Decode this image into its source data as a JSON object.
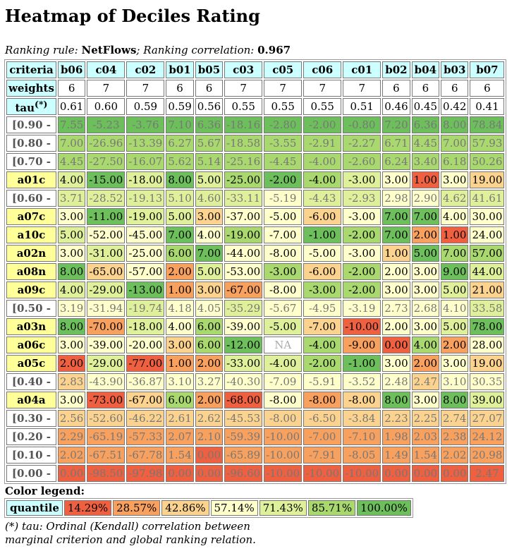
{
  "title": "Heatmap of Deciles Rating",
  "ranking": {
    "rule_label": "Ranking rule: ",
    "rule_value": "NetFlows",
    "corr_label": "; Ranking correlation: ",
    "corr_value": "0.967"
  },
  "table": {
    "corner_label": "criteria",
    "weights_label": "weights",
    "tau_label": "tau",
    "tau_sup": "(*)",
    "columns": [
      "b06",
      "c04",
      "c02",
      "b01",
      "b05",
      "c03",
      "c05",
      "c06",
      "c01",
      "b02",
      "b04",
      "b03",
      "b07"
    ],
    "weights": [
      "6",
      "7",
      "7",
      "6",
      "6",
      "7",
      "7",
      "7",
      "7",
      "6",
      "6",
      "6",
      "6"
    ],
    "tau": [
      "0.61",
      "0.60",
      "0.59",
      "0.59",
      "0.56",
      "0.55",
      "0.55",
      "0.55",
      "0.51",
      "0.46",
      "0.45",
      "0.42",
      "0.41"
    ],
    "rows": [
      {
        "label": "[0.90 -",
        "kind": "decile",
        "values": [
          "7.55",
          "-5.23",
          "-3.76",
          "7.10",
          "6.36",
          "-18.16",
          "-2.80",
          "-2.00",
          "-0.80",
          "7.20",
          "6.36",
          "8.00",
          "78.84"
        ],
        "levels": [
          7,
          7,
          7,
          7,
          7,
          7,
          7,
          7,
          7,
          7,
          7,
          7,
          7
        ]
      },
      {
        "label": "[0.80 -",
        "kind": "decile",
        "values": [
          "7.00",
          "-26.96",
          "-13.39",
          "6.27",
          "5.67",
          "-18.58",
          "-3.55",
          "-2.91",
          "-2.27",
          "6.71",
          "4.45",
          "7.00",
          "57.93"
        ],
        "levels": [
          6,
          6,
          6,
          6,
          6,
          6,
          6,
          6,
          6,
          6,
          6,
          6,
          6
        ]
      },
      {
        "label": "[0.70 -",
        "kind": "decile",
        "values": [
          "4.45",
          "-27.50",
          "-16.07",
          "5.62",
          "5.14",
          "-25.16",
          "-4.45",
          "-4.00",
          "-2.60",
          "6.24",
          "3.40",
          "6.18",
          "50.26"
        ],
        "levels": [
          6,
          6,
          6,
          6,
          6,
          6,
          6,
          6,
          6,
          6,
          6,
          6,
          6
        ]
      },
      {
        "label": "a01c",
        "kind": "action",
        "values": [
          "4.00",
          "-15.00",
          "-18.00",
          "8.00",
          "5.00",
          "-25.00",
          "-2.00",
          "-4.00",
          "-3.00",
          "3.00",
          "1.00",
          "3.00",
          "19.00"
        ],
        "levels": [
          5,
          7,
          5,
          7,
          5,
          6,
          7,
          6,
          5,
          4,
          1,
          4,
          3
        ]
      },
      {
        "label": "[0.60 -",
        "kind": "decile",
        "values": [
          "3.71",
          "-28.52",
          "-19.13",
          "5.10",
          "4.60",
          "-33.11",
          "-5.19",
          "-4.43",
          "-2.93",
          "2.98",
          "2.90",
          "4.62",
          "41.61"
        ],
        "levels": [
          5,
          5,
          5,
          5,
          5,
          5,
          4,
          5,
          5,
          4,
          4,
          5,
          5
        ]
      },
      {
        "label": "a07c",
        "kind": "action",
        "values": [
          "3.00",
          "-11.00",
          "-19.00",
          "5.00",
          "3.00",
          "-37.00",
          "-5.00",
          "-6.00",
          "-3.00",
          "7.00",
          "7.00",
          "4.00",
          "30.00"
        ],
        "levels": [
          4,
          7,
          5,
          5,
          3,
          4,
          4,
          3,
          4,
          7,
          7,
          4,
          4
        ]
      },
      {
        "label": "a10c",
        "kind": "action",
        "values": [
          "5.00",
          "-52.00",
          "-45.00",
          "7.00",
          "4.00",
          "-19.00",
          "-7.00",
          "-1.00",
          "-2.00",
          "7.00",
          "2.00",
          "1.00",
          "24.00"
        ],
        "levels": [
          5,
          4,
          4,
          7,
          4,
          6,
          4,
          7,
          6,
          7,
          2,
          1,
          4
        ]
      },
      {
        "label": "a02n",
        "kind": "action",
        "values": [
          "3.00",
          "-31.00",
          "-25.00",
          "6.00",
          "7.00",
          "-44.00",
          "-8.00",
          "-5.00",
          "-3.00",
          "1.00",
          "5.00",
          "7.00",
          "57.00"
        ],
        "levels": [
          4,
          5,
          4,
          6,
          7,
          4,
          4,
          4,
          4,
          3,
          7,
          6,
          6
        ]
      },
      {
        "label": "a08n",
        "kind": "action",
        "values": [
          "8.00",
          "-65.00",
          "-57.00",
          "2.00",
          "5.00",
          "-53.00",
          "-3.00",
          "-6.00",
          "-2.00",
          "2.00",
          "3.00",
          "9.00",
          "44.00"
        ],
        "levels": [
          7,
          3,
          4,
          2,
          5,
          4,
          6,
          3,
          6,
          4,
          4,
          7,
          5
        ]
      },
      {
        "label": "a09c",
        "kind": "action",
        "values": [
          "4.00",
          "-29.00",
          "-13.00",
          "1.00",
          "3.00",
          "-67.00",
          "-8.00",
          "-3.00",
          "-2.00",
          "3.00",
          "3.00",
          "5.00",
          "21.00"
        ],
        "levels": [
          5,
          5,
          7,
          2,
          3,
          2,
          4,
          6,
          6,
          4,
          4,
          5,
          3
        ]
      },
      {
        "label": "[0.50 -",
        "kind": "decile",
        "values": [
          "3.19",
          "-31.94",
          "-19.74",
          "4.18",
          "4.05",
          "-35.29",
          "-5.67",
          "-4.95",
          "-3.19",
          "2.73",
          "2.68",
          "4.10",
          "33.58"
        ],
        "levels": [
          4,
          4,
          5,
          4,
          4,
          5,
          4,
          4,
          4,
          4,
          4,
          4,
          5
        ]
      },
      {
        "label": "a03n",
        "kind": "action",
        "values": [
          "8.00",
          "-70.00",
          "-18.00",
          "4.00",
          "6.00",
          "-39.00",
          "-5.00",
          "-7.00",
          "-10.00",
          "2.00",
          "3.00",
          "5.00",
          "78.00"
        ],
        "levels": [
          7,
          2,
          5,
          4,
          6,
          4,
          5,
          3,
          1,
          4,
          4,
          5,
          7
        ]
      },
      {
        "label": "a06c",
        "kind": "action",
        "values": [
          "3.00",
          "-39.00",
          "-20.00",
          "3.00",
          "6.00",
          "-12.00",
          "NA",
          "-4.00",
          "-9.00",
          "0.00",
          "4.00",
          "2.00",
          "28.00"
        ],
        "levels": [
          4,
          4,
          4,
          3,
          6,
          7,
          0,
          6,
          2,
          1,
          6,
          2,
          4
        ]
      },
      {
        "label": "a05c",
        "kind": "action",
        "values": [
          "2.00",
          "-29.00",
          "-77.00",
          "1.00",
          "2.00",
          "-33.00",
          "-4.00",
          "-2.00",
          "-1.00",
          "3.00",
          "2.00",
          "3.00",
          "19.00"
        ],
        "levels": [
          1,
          5,
          1,
          2,
          2,
          5,
          5,
          6,
          7,
          4,
          2,
          4,
          3
        ]
      },
      {
        "label": "[0.40 -",
        "kind": "decile",
        "values": [
          "2.83",
          "-43.90",
          "-36.87",
          "3.10",
          "3.27",
          "-40.30",
          "-7.09",
          "-5.91",
          "-3.52",
          "2.48",
          "2.47",
          "3.10",
          "30.35"
        ],
        "levels": [
          3,
          4,
          4,
          4,
          4,
          4,
          4,
          4,
          4,
          4,
          3,
          4,
          4
        ]
      },
      {
        "label": "a04a",
        "kind": "action",
        "values": [
          "3.00",
          "-73.00",
          "-67.00",
          "6.00",
          "2.00",
          "-68.00",
          "-8.00",
          "-8.00",
          "-8.00",
          "8.00",
          "3.00",
          "8.00",
          "39.00"
        ],
        "levels": [
          4,
          1,
          3,
          6,
          2,
          1,
          4,
          2,
          3,
          7,
          4,
          7,
          5
        ]
      },
      {
        "label": "[0.30 -",
        "kind": "decile",
        "values": [
          "2.56",
          "-52.60",
          "-46.22",
          "2.61",
          "2.62",
          "-45.53",
          "-8.00",
          "-6.50",
          "-3.84",
          "2.23",
          "2.25",
          "2.74",
          "27.07"
        ],
        "levels": [
          3,
          3,
          3,
          3,
          3,
          3,
          3,
          3,
          3,
          3,
          3,
          3,
          3
        ]
      },
      {
        "label": "[0.20 -",
        "kind": "decile",
        "values": [
          "2.29",
          "-65.19",
          "-57.33",
          "2.07",
          "2.10",
          "-59.39",
          "-10.00",
          "-7.00",
          "-7.10",
          "1.98",
          "2.03",
          "2.38",
          "24.12"
        ],
        "levels": [
          2,
          2,
          2,
          2,
          2,
          2,
          2,
          2,
          2,
          2,
          2,
          2,
          2
        ]
      },
      {
        "label": "[0.10 -",
        "kind": "decile",
        "values": [
          "2.02",
          "-67.51",
          "-67.78",
          "1.54",
          "0.00",
          "-65.89",
          "-10.00",
          "-7.91",
          "-8.05",
          "1.49",
          "1.54",
          "2.02",
          "20.98"
        ],
        "levels": [
          2,
          2,
          2,
          2,
          1,
          2,
          2,
          2,
          2,
          2,
          2,
          2,
          2
        ]
      },
      {
        "label": "[0.00 -",
        "kind": "decile",
        "values": [
          "0.00",
          "-98.50",
          "-97.98",
          "0.00",
          "0.00",
          "-96.60",
          "-10.00",
          "-10.00",
          "-10.00",
          "0.00",
          "0.00",
          "0.00",
          "2.47"
        ],
        "levels": [
          1,
          1,
          1,
          1,
          1,
          1,
          1,
          1,
          1,
          1,
          1,
          1,
          1
        ]
      }
    ]
  },
  "legend": {
    "title": "Color legend:",
    "label": "quantile",
    "items": [
      "14.29%",
      "28.57%",
      "42.86%",
      "57.14%",
      "71.43%",
      "85.71%",
      "100.00%"
    ]
  },
  "colors": {
    "level_1": "#ee6040",
    "level_2": "#f8a05e",
    "level_3": "#fbd38e",
    "level_4": "#ffffcc",
    "level_5": "#dff09a",
    "level_6": "#a8d86e",
    "level_7": "#6cbf5a",
    "header_bg": "#ccffff",
    "action_bg": "#ffff99"
  },
  "footnote": {
    "line1": "(*) tau: Ordinal (Kendall) correlation between",
    "line2": "marginal criterion and global ranking relation."
  }
}
